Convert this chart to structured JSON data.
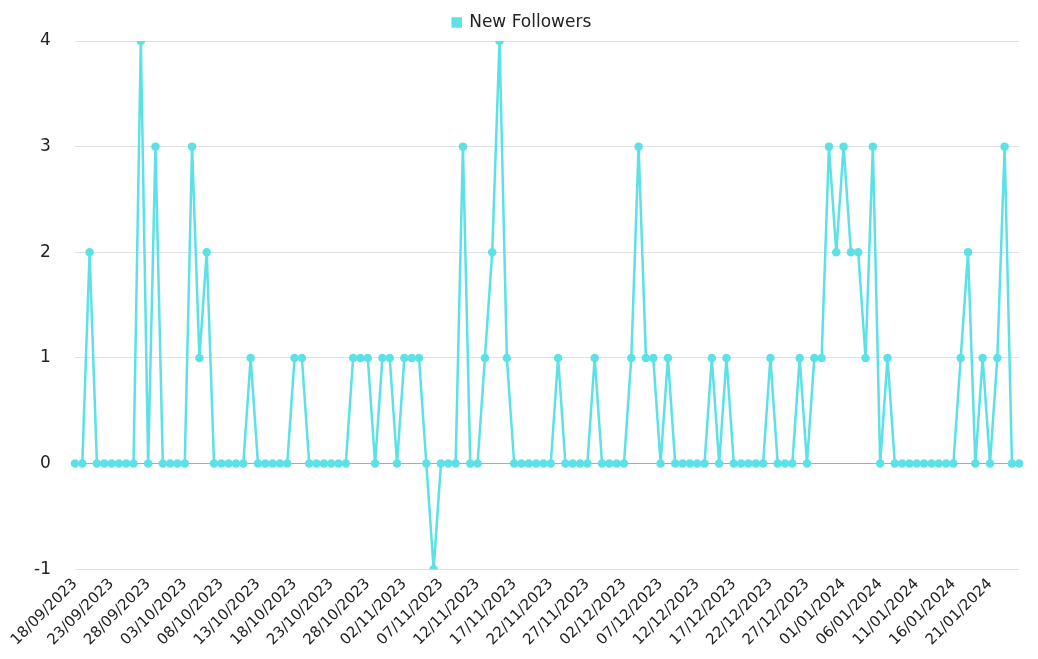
{
  "chart_data": {
    "type": "line",
    "categories": [
      "18/09/2023",
      null,
      null,
      null,
      null,
      "23/09/2023",
      null,
      null,
      null,
      null,
      "28/09/2023",
      null,
      null,
      null,
      null,
      "03/10/2023",
      null,
      null,
      null,
      null,
      "08/10/2023",
      null,
      null,
      null,
      null,
      "13/10/2023",
      null,
      null,
      null,
      null,
      "18/10/2023",
      null,
      null,
      null,
      null,
      "23/10/2023",
      null,
      null,
      null,
      null,
      "28/10/2023",
      null,
      null,
      null,
      null,
      "02/11/2023",
      null,
      null,
      null,
      null,
      "07/11/2023",
      null,
      null,
      null,
      null,
      "12/11/2023",
      null,
      null,
      null,
      null,
      "17/11/2023",
      null,
      null,
      null,
      null,
      "22/11/2023",
      null,
      null,
      null,
      null,
      "27/11/2023",
      null,
      null,
      null,
      null,
      "02/12/2023",
      null,
      null,
      null,
      null,
      "07/12/2023",
      null,
      null,
      null,
      null,
      "12/12/2023",
      null,
      null,
      null,
      null,
      "17/12/2023",
      null,
      null,
      null,
      null,
      "22/12/2023",
      null,
      null,
      null,
      null,
      "27/12/2023",
      null,
      null,
      null,
      null,
      "01/01/2024",
      null,
      null,
      null,
      null,
      "06/01/2024",
      null,
      null,
      null,
      null,
      "11/01/2024",
      null,
      null,
      null,
      null,
      "16/01/2024",
      null,
      null,
      null,
      null,
      "21/01/2024",
      null,
      null,
      null,
      null
    ],
    "series": [
      {
        "name": "New Followers",
        "color": "#5ce1e6",
        "values": [
          0,
          0,
          2,
          0,
          0,
          0,
          0,
          0,
          0,
          4,
          0,
          3,
          0,
          0,
          0,
          0,
          3,
          1,
          2,
          0,
          0,
          0,
          0,
          0,
          1,
          0,
          0,
          0,
          0,
          0,
          1,
          1,
          0,
          0,
          0,
          0,
          0,
          0,
          1,
          1,
          1,
          0,
          1,
          1,
          0,
          1,
          1,
          1,
          0,
          -1,
          0,
          0,
          0,
          3,
          0,
          0,
          1,
          2,
          4,
          1,
          0,
          0,
          0,
          0,
          0,
          0,
          1,
          0,
          0,
          0,
          0,
          1,
          0,
          0,
          0,
          0,
          1,
          3,
          1,
          1,
          0,
          1,
          0,
          0,
          0,
          0,
          0,
          1,
          0,
          1,
          0,
          0,
          0,
          0,
          0,
          1,
          0,
          0,
          0,
          1,
          0,
          1,
          1,
          3,
          2,
          3,
          2,
          2,
          1,
          3,
          0,
          1,
          0,
          0,
          0,
          0,
          0,
          0,
          0,
          0,
          0,
          1,
          2,
          0,
          1,
          0,
          1,
          3,
          0,
          0
        ]
      }
    ],
    "ylim": [
      -1,
      4
    ],
    "yticks": [
      -1,
      0,
      1,
      2,
      3,
      4
    ],
    "grid": "y",
    "legend": "top",
    "marker": "circle",
    "line_style": "solid"
  }
}
